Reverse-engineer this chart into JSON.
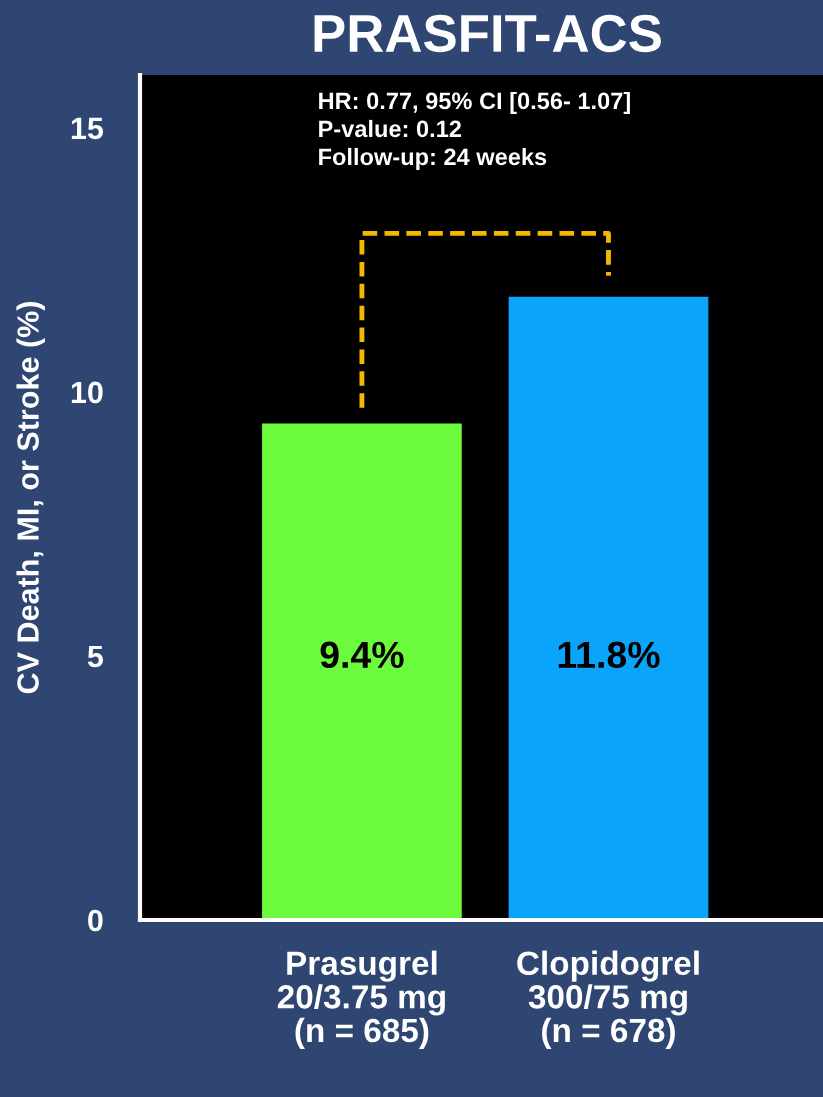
{
  "chart_data": {
    "type": "bar",
    "title": "PRASFIT-ACS",
    "ylabel": "CV Death, MI, or Stroke (%)",
    "categories": [
      "Prasugrel\n20/3.75 mg\n(n = 685)",
      "Clopidogrel\n300/75 mg\n(n = 678)"
    ],
    "values": [
      9.4,
      11.8
    ],
    "colors": [
      "#6cfa3c",
      "#0aa4fb"
    ],
    "value_labels": [
      "9.4%",
      "11.8%"
    ],
    "ylim": [
      0,
      16
    ],
    "yticks": [
      0,
      5,
      10,
      15
    ],
    "grid": false,
    "legend": false,
    "annotations": [
      "HR: 0.77, 95% CI [0.56- 1.07]\nP-value: 0.12\nFollow-up: 24 weeks"
    ]
  }
}
